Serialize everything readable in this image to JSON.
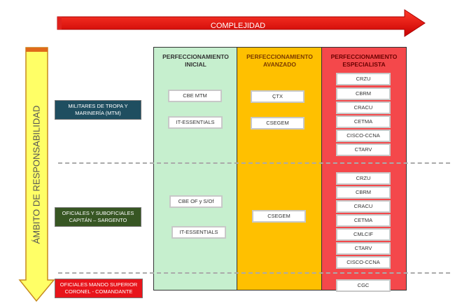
{
  "horizontal_axis": {
    "label": "COMPLEJIDAD"
  },
  "vertical_axis": {
    "label": "ÁMBITO DE RESPONSABILIDAD"
  },
  "columns": [
    {
      "title_line1": "PERFECCIONAMIENTO",
      "title_line2": "INICIAL",
      "color": "#c6efce"
    },
    {
      "title_line1": "PERFECCIONAMIENTO",
      "title_line2": "AVANZADO",
      "color": "#ffc000"
    },
    {
      "title_line1": "PERFECCIONAMIENTO",
      "title_line2": "ESPECIALISTA",
      "color": "#f4484b"
    }
  ],
  "rows": [
    {
      "line1": "MILITARES  DE TROPA Y",
      "line2": "MARINERÍA  (MTM)",
      "color": "#1f4e60",
      "inicial": [
        "CBE MTM",
        "IT-ESSENTIALS"
      ],
      "avanzado": [
        "ÇTX",
        "CSEGEM"
      ],
      "especialista": [
        "CRZU",
        "CBRM",
        "CRACU",
        "CETMA",
        "CISCO-CCNA",
        "CTARV"
      ]
    },
    {
      "line1": "OFICIALES Y SUBOFICIALES",
      "line2": "CAPITÁN – SARGENTO",
      "color": "#375623",
      "inicial": [
        "CBE OF y S/Of",
        "IT-ESSENTIALS"
      ],
      "avanzado": [
        "CSEGEM"
      ],
      "especialista": [
        "CRZU",
        "CBRM",
        "CRACU",
        "CETMA",
        "CMLCIF",
        "CTARV",
        "CISCO-CCNA"
      ]
    },
    {
      "line1": "OFICIALES MANDO SUPERIOR",
      "line2": "CORONEL - COMANDANTE",
      "color": "#e8141b",
      "inicial": [],
      "avanzado": [],
      "especialista": [
        "CGC"
      ]
    }
  ]
}
